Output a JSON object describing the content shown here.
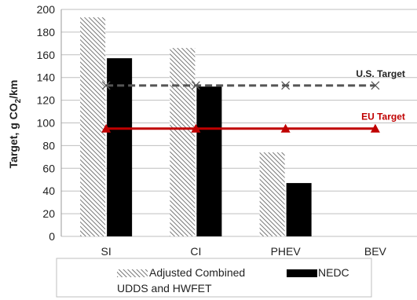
{
  "chart_data": {
    "type": "bar",
    "categories": [
      "SI",
      "CI",
      "PHEV",
      "BEV"
    ],
    "series": [
      {
        "name": "Adjusted Combined UDDS and HWFET",
        "values": [
          193,
          166,
          74,
          0
        ],
        "pattern": "diagonal-hatch"
      },
      {
        "name": "NEDC",
        "values": [
          157,
          132,
          47,
          0
        ],
        "color": "#000000"
      }
    ],
    "lines": [
      {
        "label": "U.S. Target",
        "value": 133,
        "style": "dashed",
        "marker": "x",
        "color": "#555555"
      },
      {
        "label": "EU Target",
        "value": 95,
        "style": "solid",
        "marker": "triangle",
        "color": "#c00000"
      }
    ],
    "yticks": [
      0,
      20,
      40,
      60,
      80,
      100,
      120,
      140,
      160,
      180,
      200
    ],
    "ylim": [
      0,
      200
    ],
    "ylabel": "Target, g CO2/km",
    "xlabel": "",
    "title": "",
    "grid": true,
    "legend_position": "bottom",
    "legend": {
      "item1_line1": "Adjusted Combined",
      "item1_line2": "UDDS and HWFET",
      "item2": "NEDC"
    }
  }
}
